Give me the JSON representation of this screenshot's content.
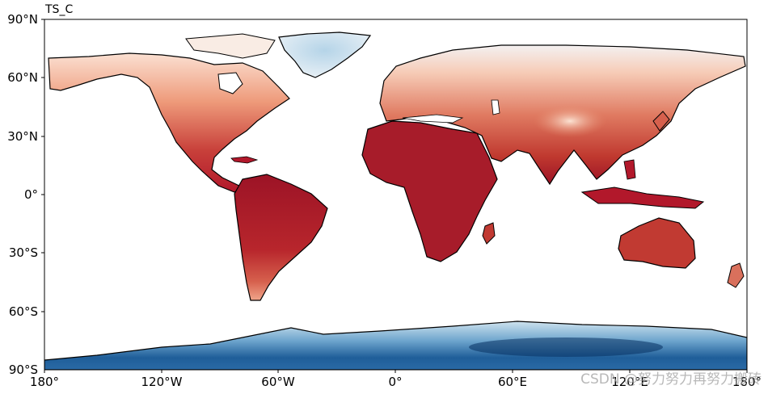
{
  "map": {
    "title": "TS_C",
    "lon_ticks": [
      "180°",
      "120°W",
      "60°W",
      "0°",
      "60°E",
      "120°E",
      "180°"
    ],
    "lat_ticks": [
      "90°N",
      "60°N",
      "30°N",
      "0°",
      "30°S",
      "60°S",
      "90°S"
    ],
    "lon_range": [
      -180,
      180
    ],
    "lat_range": [
      -90,
      90
    ],
    "colormap": "RdBu_r",
    "colors": {
      "hot": "#7a0c1e",
      "warm": "#b2182b",
      "mild": "#ef8a62",
      "pale": "#fddbc7",
      "neutral": "#f7f7f7",
      "cool": "#92c5de",
      "cold": "#2166ac",
      "coldest": "#053061"
    }
  },
  "watermark": "CSDN @努力努力再努力搬砖"
}
